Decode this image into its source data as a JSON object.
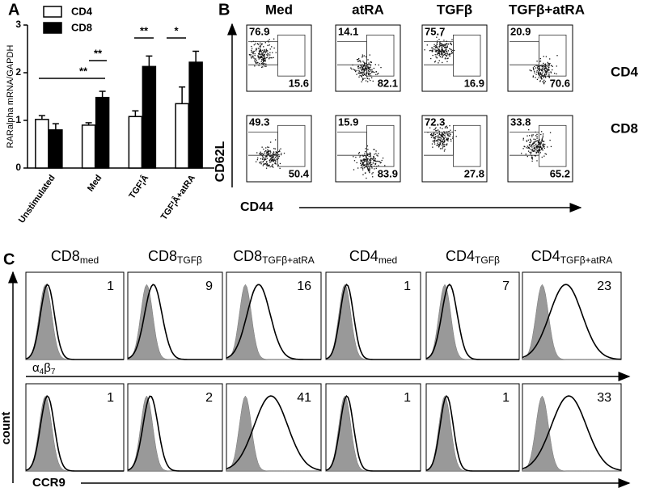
{
  "panel_labels": [
    "A",
    "B",
    "C"
  ],
  "chart_data": {
    "type": "bar",
    "ylabel": "RARalpha mRNA/GAPDH",
    "categories": [
      "Unstimulated",
      "Med",
      "TGF¦Â",
      "TGF¦Â+atRA"
    ],
    "series": [
      {
        "name": "CD4",
        "color": "#ffffff",
        "values": [
          1.02,
          0.9,
          1.08,
          1.35
        ],
        "errors": [
          0.08,
          0.05,
          0.12,
          0.35
        ]
      },
      {
        "name": "CD8",
        "color": "#000000",
        "values": [
          0.8,
          1.48,
          2.13,
          2.22
        ],
        "errors": [
          0.13,
          0.13,
          0.22,
          0.23
        ]
      }
    ],
    "ylim": [
      0,
      3
    ],
    "yticks": [
      0,
      1,
      2,
      3
    ],
    "annotations": [
      "**",
      "**",
      "**",
      "*"
    ]
  },
  "flow_panel": {
    "columns": [
      "Med",
      "atRA",
      "TGFβ",
      "TGFβ+atRA"
    ],
    "rows": [
      "CD4",
      "CD8"
    ],
    "y_axis": "CD62L",
    "x_axis": "CD44",
    "gates": [
      [
        [
          76.9,
          15.6
        ],
        [
          14.1,
          82.1
        ],
        [
          75.7,
          16.9
        ],
        [
          20.9,
          70.6
        ]
      ],
      [
        [
          49.3,
          50.4
        ],
        [
          15.9,
          83.9
        ],
        [
          72.3,
          27.8
        ],
        [
          33.8,
          65.2
        ]
      ]
    ]
  },
  "histogram_panel": {
    "columns": [
      {
        "main": "CD8",
        "sub": "med"
      },
      {
        "main": "CD8",
        "sub": "TGFβ"
      },
      {
        "main": "CD8",
        "sub": "TGFβ+atRA"
      },
      {
        "main": "CD4",
        "sub": "med"
      },
      {
        "main": "CD4",
        "sub": "TGFβ"
      },
      {
        "main": "CD4",
        "sub": "TGFβ+atRA"
      }
    ],
    "rows": [
      {
        "marker": [
          {
            "text": "α",
            "sub": "4"
          },
          {
            "text": "β",
            "sub": "7"
          }
        ],
        "values": [
          1,
          9,
          16,
          1,
          7,
          23
        ]
      },
      {
        "marker": [
          {
            "text": "CCR9"
          }
        ],
        "values": [
          1,
          2,
          41,
          1,
          1,
          33
        ]
      }
    ],
    "y_axis": "count"
  }
}
